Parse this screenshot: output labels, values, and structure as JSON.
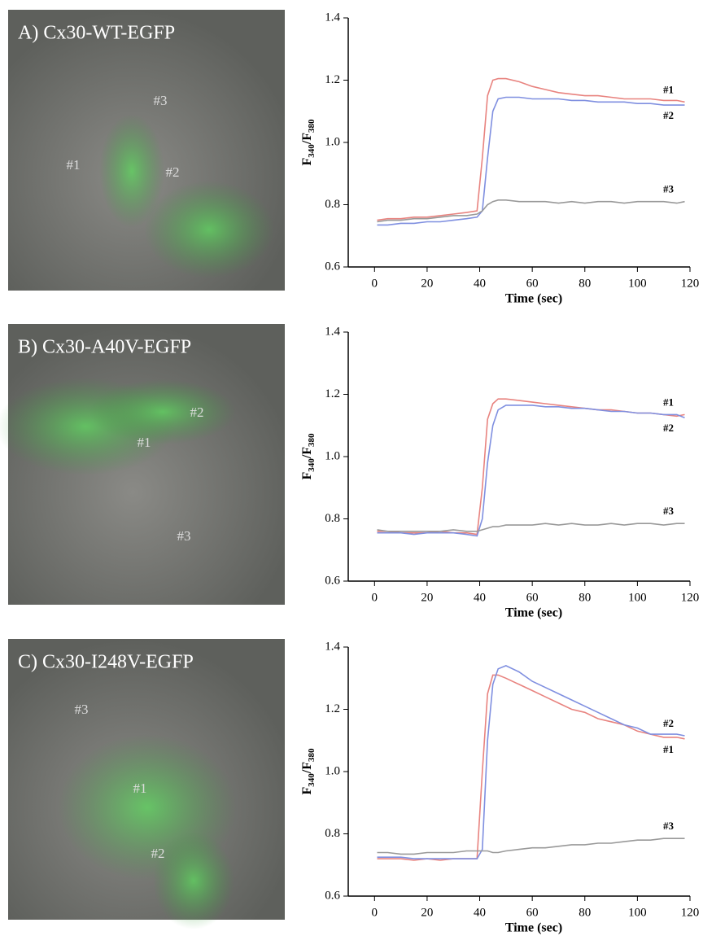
{
  "images": [
    {
      "title": "A) Cx30-WT-EGFP",
      "labels": [
        "#3",
        "#1",
        "#2"
      ]
    },
    {
      "title": "B) Cx30-A40V-EGFP",
      "labels": [
        "#2",
        "#1",
        "#3"
      ]
    },
    {
      "title": "C) Cx30-I248V-EGFP",
      "labels": [
        "#3",
        "#1",
        "#2"
      ]
    }
  ],
  "chart_data": [
    {
      "type": "line",
      "xlabel": "Time (sec)",
      "ylabel": [
        "F",
        "340",
        "/F",
        "380"
      ],
      "xlim": [
        -10,
        120
      ],
      "ylim": [
        0.6,
        1.4
      ],
      "xticks": [
        0,
        20,
        40,
        60,
        80,
        100,
        120
      ],
      "yticks": [
        0.6,
        0.8,
        {
          "value": 1.0,
          "label": "1.0"
        },
        1.2,
        1.4
      ],
      "x": [
        1,
        5,
        10,
        15,
        20,
        25,
        30,
        35,
        39,
        41,
        43,
        45,
        47,
        50,
        55,
        60,
        65,
        70,
        75,
        80,
        85,
        90,
        95,
        100,
        105,
        110,
        115,
        118
      ],
      "series": [
        {
          "name": "#1",
          "color": "#e8837f",
          "values": [
            0.75,
            0.755,
            0.755,
            0.76,
            0.76,
            0.765,
            0.77,
            0.775,
            0.78,
            0.95,
            1.15,
            1.2,
            1.205,
            1.205,
            1.195,
            1.18,
            1.17,
            1.16,
            1.155,
            1.15,
            1.15,
            1.145,
            1.14,
            1.14,
            1.14,
            1.135,
            1.135,
            1.13
          ]
        },
        {
          "name": "#2",
          "color": "#7f8fe0",
          "values": [
            0.735,
            0.735,
            0.74,
            0.74,
            0.745,
            0.745,
            0.75,
            0.755,
            0.76,
            0.78,
            0.95,
            1.1,
            1.14,
            1.145,
            1.145,
            1.14,
            1.14,
            1.14,
            1.135,
            1.135,
            1.13,
            1.13,
            1.13,
            1.125,
            1.125,
            1.12,
            1.12,
            1.12
          ]
        },
        {
          "name": "#3",
          "color": "#999999",
          "values": [
            0.745,
            0.75,
            0.75,
            0.755,
            0.755,
            0.76,
            0.765,
            0.765,
            0.77,
            0.78,
            0.8,
            0.81,
            0.815,
            0.815,
            0.81,
            0.81,
            0.81,
            0.805,
            0.81,
            0.805,
            0.81,
            0.81,
            0.805,
            0.81,
            0.81,
            0.81,
            0.805,
            0.81
          ]
        }
      ]
    },
    {
      "type": "line",
      "xlabel": "Time (sec)",
      "ylabel": [
        "F",
        "340",
        "/F",
        "380"
      ],
      "xlim": [
        -10,
        120
      ],
      "ylim": [
        0.6,
        1.4
      ],
      "xticks": [
        0,
        20,
        40,
        60,
        80,
        100,
        120
      ],
      "yticks": [
        0.6,
        0.8,
        {
          "value": 1.0,
          "label": "1.0"
        },
        1.2,
        1.4
      ],
      "x": [
        1,
        5,
        10,
        15,
        20,
        25,
        30,
        35,
        39,
        41,
        43,
        45,
        47,
        50,
        55,
        60,
        65,
        70,
        75,
        80,
        85,
        90,
        95,
        100,
        105,
        110,
        115,
        118
      ],
      "series": [
        {
          "name": "#1",
          "color": "#e8837f",
          "values": [
            0.76,
            0.76,
            0.755,
            0.755,
            0.755,
            0.76,
            0.755,
            0.755,
            0.75,
            0.9,
            1.12,
            1.17,
            1.185,
            1.185,
            1.18,
            1.175,
            1.17,
            1.165,
            1.16,
            1.155,
            1.15,
            1.15,
            1.145,
            1.14,
            1.14,
            1.135,
            1.13,
            1.135
          ]
        },
        {
          "name": "#2",
          "color": "#7f8fe0",
          "values": [
            0.755,
            0.755,
            0.755,
            0.75,
            0.755,
            0.755,
            0.755,
            0.75,
            0.745,
            0.8,
            0.98,
            1.1,
            1.15,
            1.165,
            1.165,
            1.165,
            1.16,
            1.16,
            1.155,
            1.155,
            1.15,
            1.145,
            1.145,
            1.14,
            1.14,
            1.135,
            1.135,
            1.125
          ]
        },
        {
          "name": "#3",
          "color": "#999999",
          "values": [
            0.765,
            0.76,
            0.76,
            0.76,
            0.76,
            0.76,
            0.765,
            0.76,
            0.76,
            0.765,
            0.77,
            0.775,
            0.775,
            0.78,
            0.78,
            0.78,
            0.785,
            0.78,
            0.785,
            0.78,
            0.78,
            0.785,
            0.78,
            0.785,
            0.785,
            0.78,
            0.785,
            0.785
          ]
        }
      ]
    },
    {
      "type": "line",
      "xlabel": "Time (sec)",
      "ylabel": [
        "F",
        "340",
        "/F",
        "380"
      ],
      "xlim": [
        -10,
        120
      ],
      "ylim": [
        0.6,
        1.4
      ],
      "xticks": [
        0,
        20,
        40,
        60,
        80,
        100,
        120
      ],
      "yticks": [
        0.6,
        0.8,
        {
          "value": 1.0,
          "label": "1.0"
        },
        1.2,
        1.4
      ],
      "x": [
        1,
        5,
        10,
        15,
        20,
        25,
        30,
        35,
        39,
        41,
        43,
        45,
        47,
        50,
        55,
        60,
        65,
        70,
        75,
        80,
        85,
        90,
        95,
        100,
        105,
        110,
        115,
        118
      ],
      "series": [
        {
          "name": "#1",
          "color": "#e8837f",
          "values": [
            0.72,
            0.72,
            0.72,
            0.715,
            0.72,
            0.715,
            0.72,
            0.72,
            0.72,
            1.0,
            1.25,
            1.31,
            1.31,
            1.3,
            1.28,
            1.26,
            1.24,
            1.22,
            1.2,
            1.19,
            1.17,
            1.16,
            1.15,
            1.13,
            1.12,
            1.11,
            1.11,
            1.105
          ]
        },
        {
          "name": "#2",
          "color": "#7f8fe0",
          "values": [
            0.725,
            0.725,
            0.725,
            0.72,
            0.72,
            0.72,
            0.72,
            0.72,
            0.72,
            0.75,
            1.1,
            1.28,
            1.33,
            1.34,
            1.32,
            1.29,
            1.27,
            1.25,
            1.23,
            1.21,
            1.19,
            1.17,
            1.15,
            1.14,
            1.12,
            1.12,
            1.12,
            1.115
          ]
        },
        {
          "name": "#3",
          "color": "#999999",
          "values": [
            0.74,
            0.74,
            0.735,
            0.735,
            0.74,
            0.74,
            0.74,
            0.745,
            0.745,
            0.745,
            0.745,
            0.74,
            0.74,
            0.745,
            0.75,
            0.755,
            0.755,
            0.76,
            0.765,
            0.765,
            0.77,
            0.77,
            0.775,
            0.78,
            0.78,
            0.785,
            0.785,
            0.785
          ]
        }
      ]
    }
  ]
}
